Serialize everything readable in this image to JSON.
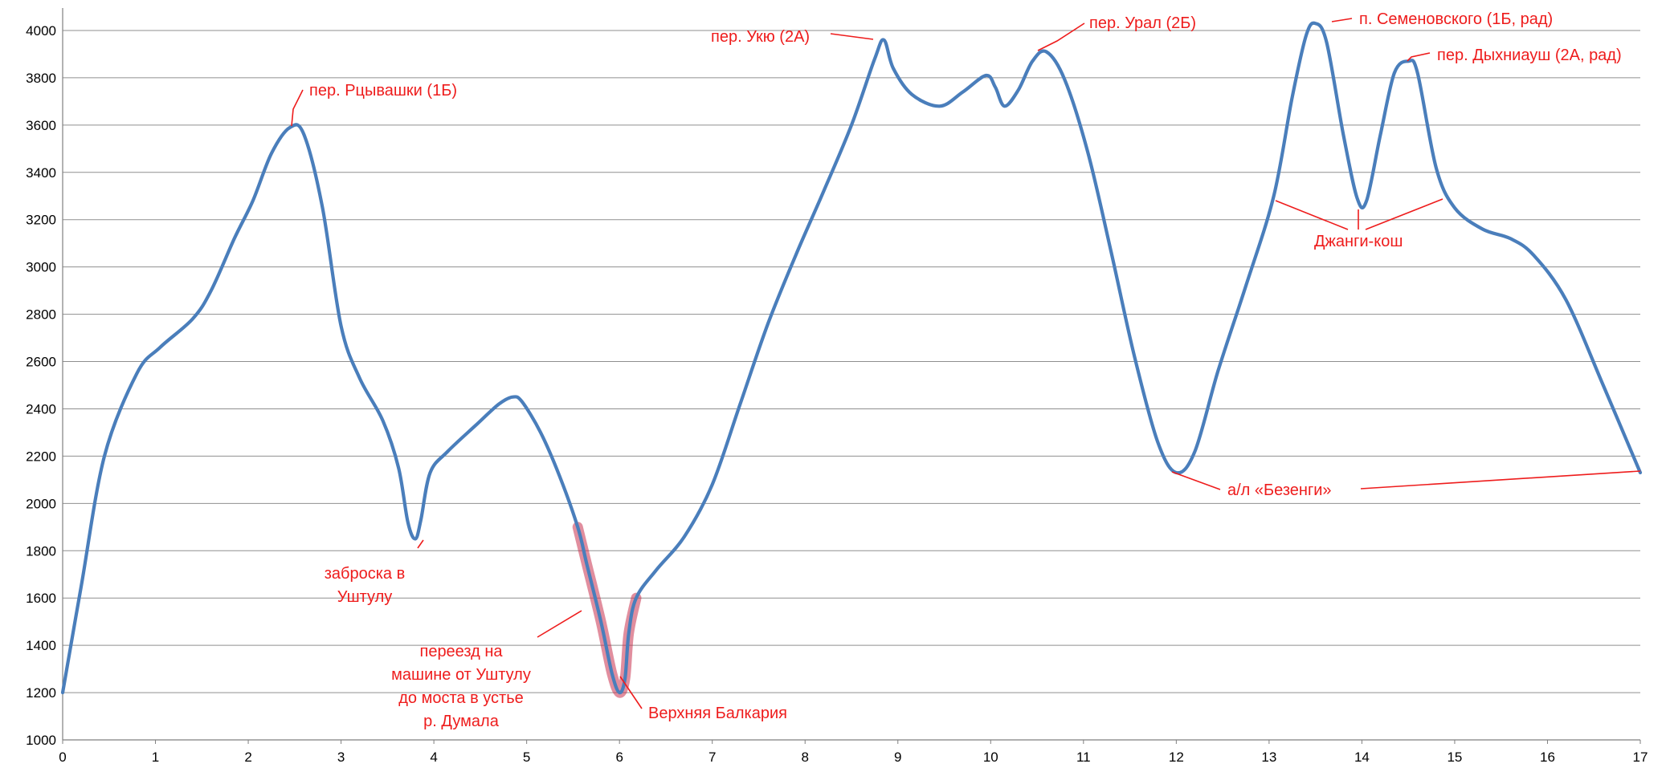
{
  "chart_data": {
    "type": "line",
    "title": "",
    "xlabel": "",
    "ylabel": "",
    "xlim": [
      0,
      17
    ],
    "ylim": [
      1000,
      4000
    ],
    "x_ticks": [
      "0",
      "1",
      "2",
      "3",
      "4",
      "5",
      "6",
      "7",
      "8",
      "9",
      "10",
      "11",
      "12",
      "13",
      "14",
      "15",
      "16",
      "17"
    ],
    "y_ticks": [
      "1000",
      "1200",
      "1400",
      "1600",
      "1800",
      "2000",
      "2200",
      "2400",
      "2600",
      "2800",
      "3000",
      "3200",
      "3400",
      "3600",
      "3800",
      "4000"
    ],
    "grid": true,
    "series": [
      {
        "color": "#4a7ebb",
        "points": [
          [
            0,
            1200
          ],
          [
            0.2,
            1650
          ],
          [
            0.45,
            2200
          ],
          [
            0.8,
            2550
          ],
          [
            1.05,
            2660
          ],
          [
            1.4,
            2780
          ],
          [
            1.6,
            2900
          ],
          [
            1.85,
            3120
          ],
          [
            2.05,
            3280
          ],
          [
            2.25,
            3480
          ],
          [
            2.45,
            3590
          ],
          [
            2.6,
            3560
          ],
          [
            2.8,
            3250
          ],
          [
            3.0,
            2750
          ],
          [
            3.2,
            2530
          ],
          [
            3.45,
            2350
          ],
          [
            3.62,
            2150
          ],
          [
            3.72,
            1920
          ],
          [
            3.8,
            1850
          ],
          [
            3.86,
            1930
          ],
          [
            3.96,
            2130
          ],
          [
            4.15,
            2220
          ],
          [
            4.45,
            2330
          ],
          [
            4.7,
            2420
          ],
          [
            4.85,
            2450
          ],
          [
            4.95,
            2430
          ],
          [
            5.15,
            2300
          ],
          [
            5.35,
            2120
          ],
          [
            5.55,
            1900
          ],
          [
            5.65,
            1740
          ],
          [
            5.8,
            1500
          ],
          [
            5.92,
            1280
          ],
          [
            6.0,
            1200
          ],
          [
            6.06,
            1260
          ],
          [
            6.1,
            1450
          ],
          [
            6.18,
            1600
          ],
          [
            6.4,
            1720
          ],
          [
            6.7,
            1860
          ],
          [
            7.0,
            2080
          ],
          [
            7.3,
            2420
          ],
          [
            7.6,
            2760
          ],
          [
            7.9,
            3050
          ],
          [
            8.2,
            3320
          ],
          [
            8.5,
            3600
          ],
          [
            8.75,
            3880
          ],
          [
            8.85,
            3960
          ],
          [
            8.95,
            3840
          ],
          [
            9.15,
            3730
          ],
          [
            9.45,
            3680
          ],
          [
            9.7,
            3740
          ],
          [
            9.95,
            3810
          ],
          [
            10.05,
            3760
          ],
          [
            10.15,
            3680
          ],
          [
            10.3,
            3750
          ],
          [
            10.45,
            3870
          ],
          [
            10.6,
            3910
          ],
          [
            10.8,
            3790
          ],
          [
            11.05,
            3480
          ],
          [
            11.3,
            3060
          ],
          [
            11.55,
            2620
          ],
          [
            11.8,
            2260
          ],
          [
            12.0,
            2130
          ],
          [
            12.2,
            2220
          ],
          [
            12.45,
            2560
          ],
          [
            12.75,
            2920
          ],
          [
            13.05,
            3300
          ],
          [
            13.25,
            3720
          ],
          [
            13.4,
            3980
          ],
          [
            13.5,
            4030
          ],
          [
            13.62,
            3950
          ],
          [
            13.8,
            3560
          ],
          [
            13.95,
            3290
          ],
          [
            14.05,
            3280
          ],
          [
            14.2,
            3560
          ],
          [
            14.35,
            3820
          ],
          [
            14.5,
            3870
          ],
          [
            14.6,
            3820
          ],
          [
            14.8,
            3420
          ],
          [
            15.0,
            3250
          ],
          [
            15.3,
            3160
          ],
          [
            15.6,
            3120
          ],
          [
            15.85,
            3050
          ],
          [
            16.2,
            2860
          ],
          [
            16.6,
            2500
          ],
          [
            17.0,
            2130
          ]
        ]
      }
    ],
    "highlight": {
      "x_from": 5.55,
      "x_to": 6.18,
      "color": "#c8324e"
    },
    "annotations": [
      {
        "id": "pass-rtsyvashki",
        "text": "пер. Рцывашки (1Б)"
      },
      {
        "id": "zabroska-1",
        "text": "заброска в"
      },
      {
        "id": "zabroska-2",
        "text": "Уштулу"
      },
      {
        "id": "transfer-1",
        "text": "переезд на"
      },
      {
        "id": "transfer-2",
        "text": "машине от Уштулу"
      },
      {
        "id": "transfer-3",
        "text": "до моста в устье"
      },
      {
        "id": "transfer-4",
        "text": "р. Думала"
      },
      {
        "id": "v-balkaria",
        "text": "Верхняя Балкария"
      },
      {
        "id": "pass-ukyu",
        "text": "пер. Укю (2А)"
      },
      {
        "id": "pass-ural",
        "text": "пер. Урал (2Б)"
      },
      {
        "id": "bezengi",
        "text": "а/л «Безенги»"
      },
      {
        "id": "semenovsky",
        "text": "п. Семеновского (1Б, рад)"
      },
      {
        "id": "dykhniaush",
        "text": "пер. Дыхниауш (2А, рад)"
      },
      {
        "id": "dzhangi",
        "text": "Джанги-кош"
      }
    ]
  }
}
